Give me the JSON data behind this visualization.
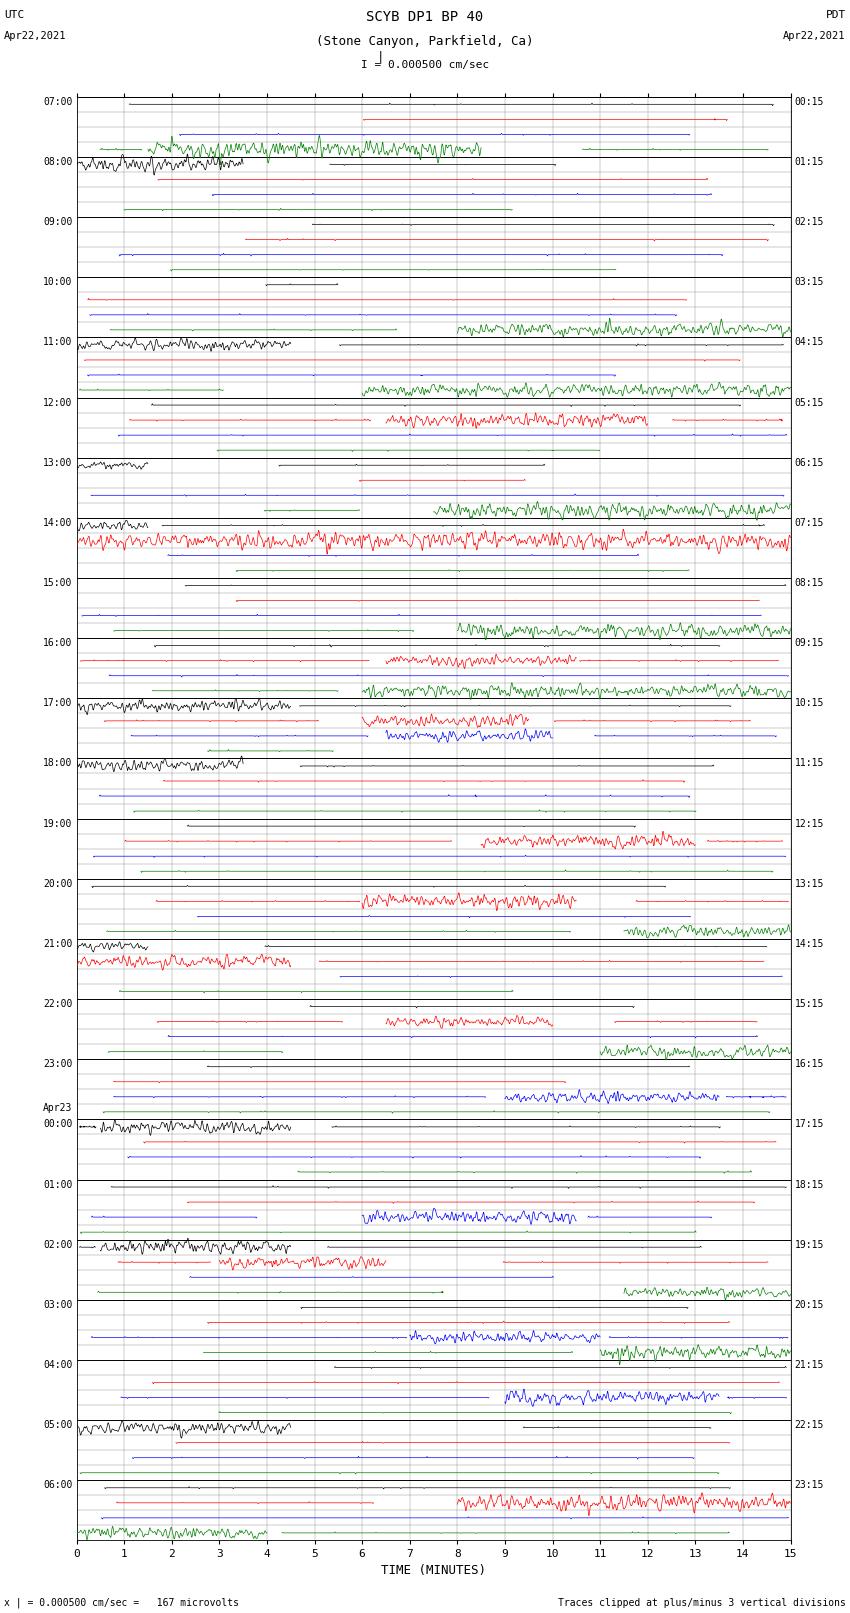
{
  "title_line1": "SCYB DP1 BP 40",
  "title_line2": "(Stone Canyon, Parkfield, Ca)",
  "scale_label": "I = 0.000500 cm/sec",
  "bottom_label1": "x | = 0.000500 cm/sec =   167 microvolts",
  "bottom_label2": "Traces clipped at plus/minus 3 vertical divisions",
  "xlabel": "TIME (MINUTES)",
  "xmin": 0,
  "xmax": 15,
  "xticks": [
    0,
    1,
    2,
    3,
    4,
    5,
    6,
    7,
    8,
    9,
    10,
    11,
    12,
    13,
    14,
    15
  ],
  "bg_color": "#ffffff",
  "major_grid_color": "#000000",
  "minor_grid_color": "#888888",
  "trace_colors": [
    "#000000",
    "#ff0000",
    "#0000ff",
    "#008000"
  ],
  "num_major_rows": 24,
  "subrows_per_major": 4,
  "left_times": [
    "07:00",
    "08:00",
    "09:00",
    "10:00",
    "11:00",
    "12:00",
    "13:00",
    "14:00",
    "15:00",
    "16:00",
    "17:00",
    "18:00",
    "19:00",
    "20:00",
    "21:00",
    "22:00",
    "23:00",
    "Apr23\n00:00",
    "01:00",
    "02:00",
    "03:00",
    "04:00",
    "05:00",
    "06:00"
  ],
  "right_times": [
    "00:15",
    "01:15",
    "02:15",
    "03:15",
    "04:15",
    "05:15",
    "06:15",
    "07:15",
    "08:15",
    "09:15",
    "10:15",
    "11:15",
    "12:15",
    "13:15",
    "14:15",
    "15:15",
    "16:15",
    "17:15",
    "18:15",
    "19:15",
    "20:15",
    "21:15",
    "22:15",
    "23:15"
  ]
}
